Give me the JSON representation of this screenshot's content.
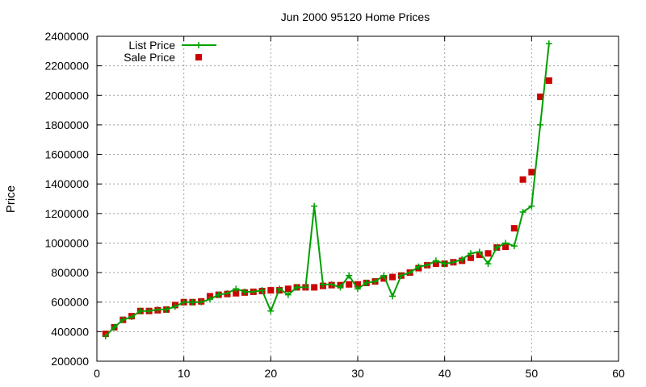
{
  "chart_data": {
    "type": "line",
    "title": "Jun 2000 95120 Home Prices",
    "ylabel": "Price",
    "xlabel": "",
    "xlim": [
      0,
      60
    ],
    "ylim": [
      200000,
      2400000
    ],
    "xticks": [
      "0",
      "10",
      "20",
      "30",
      "40",
      "50",
      "60"
    ],
    "yticks": [
      "200000",
      "400000",
      "600000",
      "800000",
      "1000000",
      "1200000",
      "1400000",
      "1600000",
      "1800000",
      "2000000",
      "2200000",
      "2400000"
    ],
    "grid": true,
    "legend_position": "top-left",
    "series": [
      {
        "name": "List Price",
        "style": "line-with-plus-markers",
        "color": "#00a000",
        "x": [
          1,
          2,
          3,
          4,
          5,
          6,
          7,
          8,
          9,
          10,
          11,
          12,
          13,
          14,
          15,
          16,
          17,
          18,
          19,
          20,
          21,
          22,
          23,
          24,
          25,
          26,
          27,
          28,
          29,
          30,
          31,
          32,
          33,
          34,
          35,
          36,
          37,
          38,
          39,
          40,
          41,
          42,
          43,
          44,
          45,
          46,
          47,
          48,
          49,
          50,
          51,
          52
        ],
        "y": [
          370000,
          430000,
          480000,
          500000,
          540000,
          540000,
          550000,
          550000,
          570000,
          600000,
          600000,
          600000,
          620000,
          650000,
          660000,
          690000,
          670000,
          670000,
          680000,
          540000,
          690000,
          650000,
          700000,
          700000,
          1250000,
          720000,
          720000,
          700000,
          780000,
          690000,
          730000,
          740000,
          780000,
          640000,
          780000,
          800000,
          840000,
          850000,
          880000,
          860000,
          870000,
          890000,
          930000,
          940000,
          860000,
          970000,
          1000000,
          980000,
          1210000,
          1250000,
          1800000,
          2350000
        ]
      },
      {
        "name": "Sale Price",
        "style": "square-markers",
        "color": "#cc0000",
        "x": [
          1,
          2,
          3,
          4,
          5,
          6,
          7,
          8,
          9,
          10,
          11,
          12,
          13,
          14,
          15,
          16,
          17,
          18,
          19,
          20,
          21,
          22,
          23,
          24,
          25,
          26,
          27,
          28,
          29,
          30,
          31,
          32,
          33,
          34,
          35,
          36,
          37,
          38,
          39,
          40,
          41,
          42,
          43,
          44,
          45,
          46,
          47,
          48,
          49,
          50,
          51,
          52
        ],
        "y": [
          385000,
          430000,
          480000,
          505000,
          540000,
          540000,
          545000,
          550000,
          580000,
          600000,
          600000,
          605000,
          640000,
          650000,
          655000,
          660000,
          665000,
          670000,
          675000,
          680000,
          680000,
          690000,
          700000,
          700000,
          700000,
          710000,
          715000,
          715000,
          720000,
          720000,
          730000,
          740000,
          760000,
          770000,
          780000,
          800000,
          830000,
          850000,
          860000,
          860000,
          870000,
          880000,
          900000,
          920000,
          930000,
          970000,
          975000,
          1100000,
          1430000,
          1480000,
          1990000,
          2100000
        ]
      }
    ]
  }
}
